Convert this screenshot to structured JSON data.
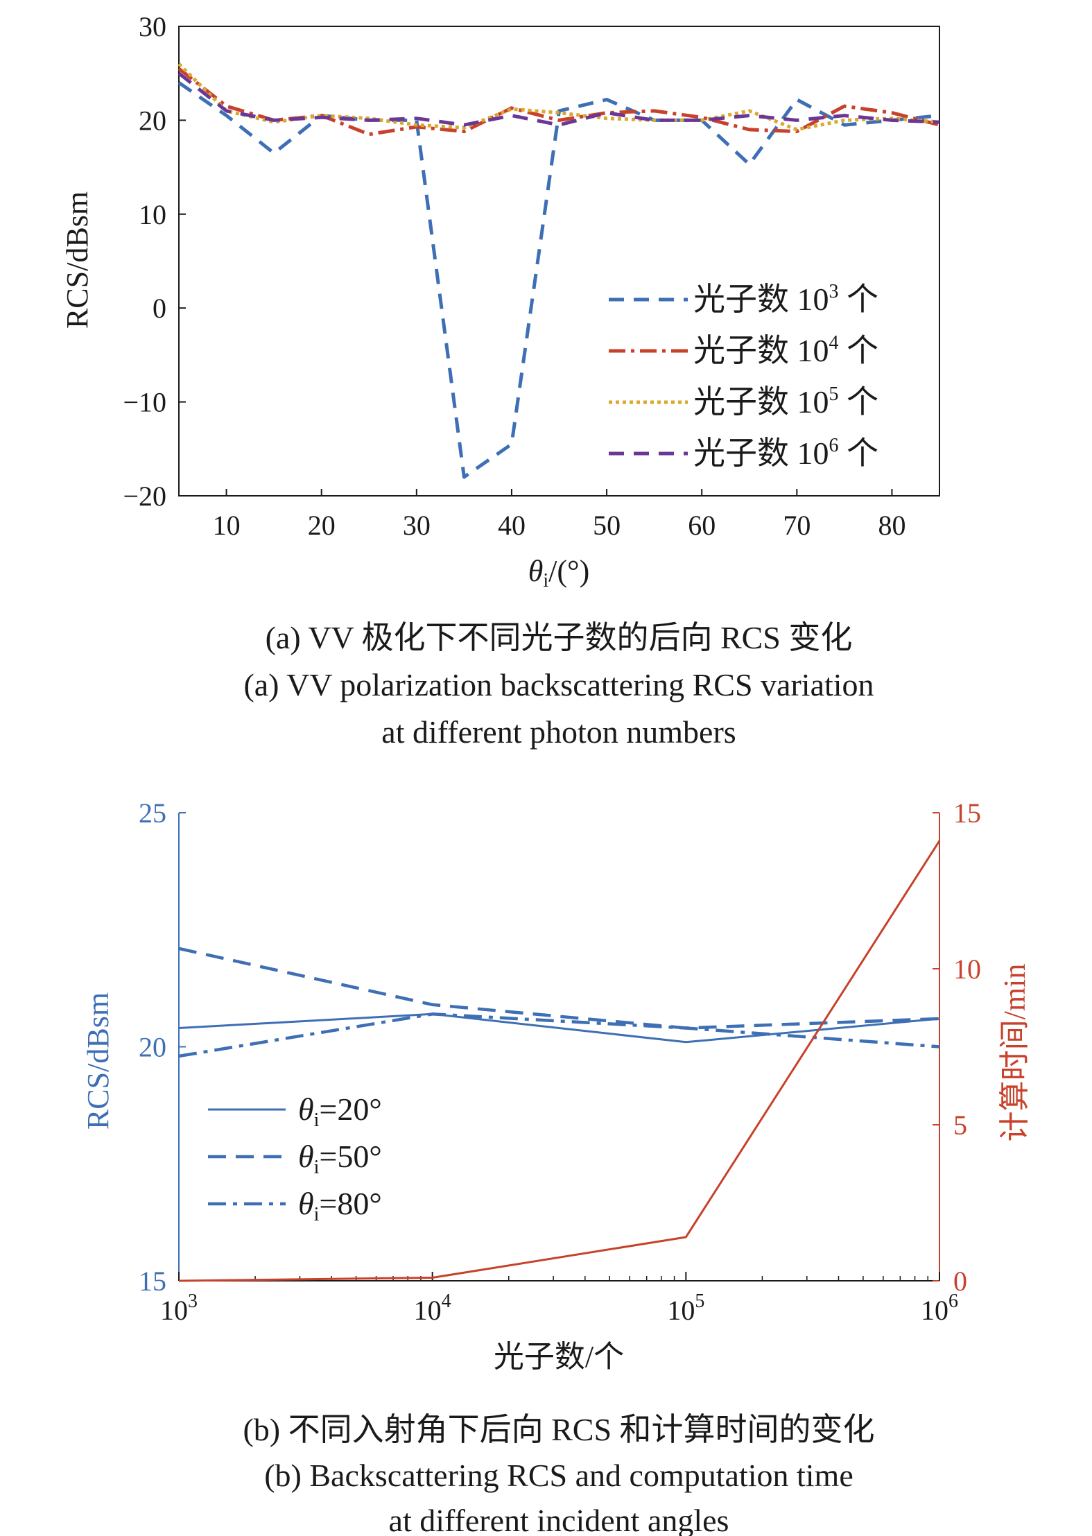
{
  "chart_data": [
    {
      "type": "line",
      "caption_zh": "(a) VV 极化下不同光子数的后向 RCS 变化",
      "caption_en_1": "(a) VV polarization backscattering RCS variation",
      "caption_en_2": "at different photon numbers",
      "ylabel": "RCS/dBsm",
      "xlabel_symbol": "θ",
      "xlabel_sub": "i",
      "xlabel_unit": "/(°)",
      "xlim": [
        5,
        85
      ],
      "ylim": [
        -20,
        30
      ],
      "xticks": [
        10,
        20,
        30,
        40,
        50,
        60,
        70,
        80
      ],
      "yticks": [
        30,
        20,
        10,
        0,
        -10,
        -20
      ],
      "ytick_labels": [
        "30",
        "20",
        "10",
        "0",
        "−10",
        "−20"
      ],
      "legend_position": "right-middle",
      "x": [
        5,
        10,
        15,
        20,
        25,
        30,
        35,
        40,
        45,
        50,
        55,
        60,
        65,
        70,
        75,
        80,
        85
      ],
      "series": [
        {
          "name_prefix": "光子数 10",
          "name_sup": "3",
          "name_suffix": " 个",
          "color": "#3e6fb5",
          "dash": "22,14",
          "values": [
            24,
            20.5,
            16.5,
            20.5,
            20,
            20,
            -18,
            -14.5,
            21,
            22.2,
            20,
            20,
            15.3,
            22.2,
            19.5,
            20,
            20.5
          ]
        },
        {
          "name_prefix": "光子数 10",
          "name_sup": "4",
          "name_suffix": " 个",
          "color": "#c8412b",
          "dash": "24,8,5,8",
          "values": [
            25.5,
            21.5,
            20,
            20.5,
            18.5,
            19.3,
            18.8,
            21.3,
            20,
            20.8,
            21,
            20.3,
            19,
            18.8,
            21.5,
            20.8,
            19.5
          ]
        },
        {
          "name_prefix": "光子数 10",
          "name_sup": "5",
          "name_suffix": " 个",
          "color": "#d9a82e",
          "dash": "5,5",
          "values": [
            26,
            21,
            19.8,
            20.5,
            20.2,
            19.5,
            19.2,
            21.2,
            20.8,
            20.2,
            20,
            20,
            21,
            19,
            20,
            20.2,
            19.8
          ]
        },
        {
          "name_prefix": "光子数 10",
          "name_sup": "6",
          "name_suffix": " 个",
          "color": "#6a3796",
          "dash": "22,14",
          "values": [
            25,
            21,
            20,
            20.3,
            20,
            20.2,
            19.5,
            20.5,
            19.5,
            20.8,
            20,
            20,
            20.5,
            20,
            20.5,
            20,
            19.8
          ]
        }
      ]
    },
    {
      "type": "line",
      "caption_zh": "(b) 不同入射角下后向 RCS 和计算时间的变化",
      "caption_en_1": "(b) Backscattering RCS and computation time",
      "caption_en_2": "at different incident angles",
      "ylabel": "RCS/dBsm",
      "y2label": "计算时间/min",
      "xlabel": "光子数/个",
      "x_scale": "log",
      "xlim": [
        1000,
        1000000
      ],
      "ylim": [
        15,
        25
      ],
      "y2lim": [
        0,
        15
      ],
      "xticks": [
        1000,
        10000,
        100000,
        1000000
      ],
      "xtick_base": "10",
      "xtick_exps": [
        "3",
        "4",
        "5",
        "6"
      ],
      "yticks": [
        25,
        20,
        15
      ],
      "y2ticks": [
        15,
        10,
        5,
        0
      ],
      "left_axis_color": "#3e6fb5",
      "right_axis_color": "#c8412b",
      "legend_position": "left-middle",
      "x": [
        1000,
        10000,
        100000,
        1000000
      ],
      "series": [
        {
          "symbol": "θ",
          "sub": "i",
          "label": "=20°",
          "axis": "left",
          "color": "#3e6fb5",
          "dash": "none",
          "values": [
            20.4,
            20.7,
            20.1,
            20.6
          ]
        },
        {
          "symbol": "θ",
          "sub": "i",
          "label": "=50°",
          "axis": "left",
          "color": "#3e6fb5",
          "dash": "26,14",
          "values": [
            22.1,
            20.9,
            20.4,
            20.6
          ]
        },
        {
          "symbol": "θ",
          "sub": "i",
          "label": "=80°",
          "axis": "left",
          "color": "#3e6fb5",
          "dash": "26,10,6,10",
          "values": [
            19.8,
            20.7,
            20.4,
            20
          ]
        },
        {
          "axis": "right",
          "color": "#c8412b",
          "dash": "none",
          "values": [
            0,
            0.1,
            1.4,
            14.1
          ]
        }
      ]
    }
  ]
}
